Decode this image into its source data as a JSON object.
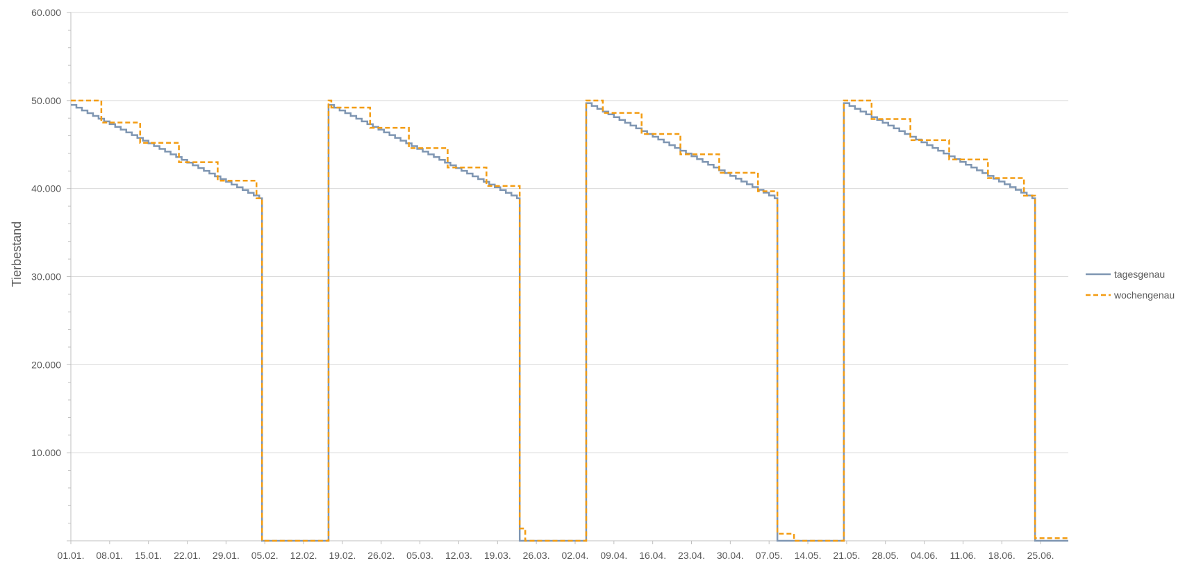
{
  "chart_data": {
    "type": "line",
    "title": "",
    "xlabel": "",
    "ylabel": "Tierbestand",
    "ylim": [
      0,
      60000
    ],
    "y_ticks": [
      0,
      10000,
      20000,
      30000,
      40000,
      50000,
      60000
    ],
    "y_tick_labels": [
      "",
      "10.000",
      "20.000",
      "30.000",
      "40.000",
      "50.000",
      "60.000"
    ],
    "x_range_days": [
      0,
      180
    ],
    "x_ticks": [
      0,
      7,
      14,
      21,
      28,
      35,
      42,
      49,
      56,
      63,
      70,
      77,
      84,
      91,
      98,
      105,
      112,
      119,
      126,
      133,
      140,
      147,
      154,
      161,
      168,
      175
    ],
    "x_tick_labels": [
      "01.01.",
      "08.01.",
      "15.01.",
      "22.01.",
      "29.01.",
      "05.02.",
      "12.02.",
      "19.02.",
      "26.02.",
      "05.03.",
      "12.03.",
      "19.03.",
      "26.03.",
      "02.04.",
      "09.04.",
      "16.04.",
      "23.04.",
      "30.04.",
      "07.05.",
      "14.05.",
      "21.05.",
      "28.05.",
      "04.06.",
      "11.06.",
      "18.06.",
      "25.06."
    ],
    "grid": true,
    "legend_position": "right",
    "series": [
      {
        "name": "tagesgenau",
        "style": "solid",
        "color": "#7f96b2",
        "cycles": [
          {
            "start": 0,
            "end": 34.5,
            "from": 49500,
            "to": 38900,
            "step": 1
          },
          {
            "start": 46.5,
            "end": 81,
            "from": 49500,
            "to": 38900,
            "step": 1
          },
          {
            "start": 93,
            "end": 127.5,
            "from": 49700,
            "to": 38900,
            "step": 1
          },
          {
            "start": 139.5,
            "end": 174,
            "from": 49700,
            "to": 38900,
            "step": 1
          }
        ]
      },
      {
        "name": "wochengenau",
        "style": "dashed",
        "color": "#f39c12",
        "values_by_period": [
          {
            "start": 0,
            "end": 5.5,
            "value": 50000
          },
          {
            "start": 5.5,
            "end": 12.5,
            "value": 47500
          },
          {
            "start": 12.5,
            "end": 19.5,
            "value": 45200
          },
          {
            "start": 19.5,
            "end": 26.5,
            "value": 43000
          },
          {
            "start": 26.5,
            "end": 33.5,
            "value": 40900
          },
          {
            "start": 33.5,
            "end": 34.5,
            "value": 38900
          },
          {
            "start": 34.5,
            "end": 46.5,
            "value": 0
          },
          {
            "start": 46.5,
            "end": 47,
            "value": 50000
          },
          {
            "start": 47,
            "end": 54,
            "value": 49200
          },
          {
            "start": 54,
            "end": 61,
            "value": 46900
          },
          {
            "start": 61,
            "end": 68,
            "value": 44600
          },
          {
            "start": 68,
            "end": 75,
            "value": 42400
          },
          {
            "start": 75,
            "end": 81,
            "value": 40300
          },
          {
            "start": 81,
            "end": 82,
            "value": 1400
          },
          {
            "start": 82,
            "end": 93,
            "value": 0
          },
          {
            "start": 93,
            "end": 96,
            "value": 50000
          },
          {
            "start": 96,
            "end": 103,
            "value": 48600
          },
          {
            "start": 103,
            "end": 110,
            "value": 46200
          },
          {
            "start": 110,
            "end": 117,
            "value": 43900
          },
          {
            "start": 117,
            "end": 124,
            "value": 41800
          },
          {
            "start": 124,
            "end": 127.5,
            "value": 39700
          },
          {
            "start": 127.5,
            "end": 130.5,
            "value": 800
          },
          {
            "start": 130.5,
            "end": 139.5,
            "value": 0
          },
          {
            "start": 139.5,
            "end": 144.5,
            "value": 50000
          },
          {
            "start": 144.5,
            "end": 151.5,
            "value": 47900
          },
          {
            "start": 151.5,
            "end": 158.5,
            "value": 45500
          },
          {
            "start": 158.5,
            "end": 165.5,
            "value": 43300
          },
          {
            "start": 165.5,
            "end": 172,
            "value": 41200
          },
          {
            "start": 172,
            "end": 174,
            "value": 39200
          },
          {
            "start": 174,
            "end": 180,
            "value": 300
          }
        ]
      }
    ]
  }
}
